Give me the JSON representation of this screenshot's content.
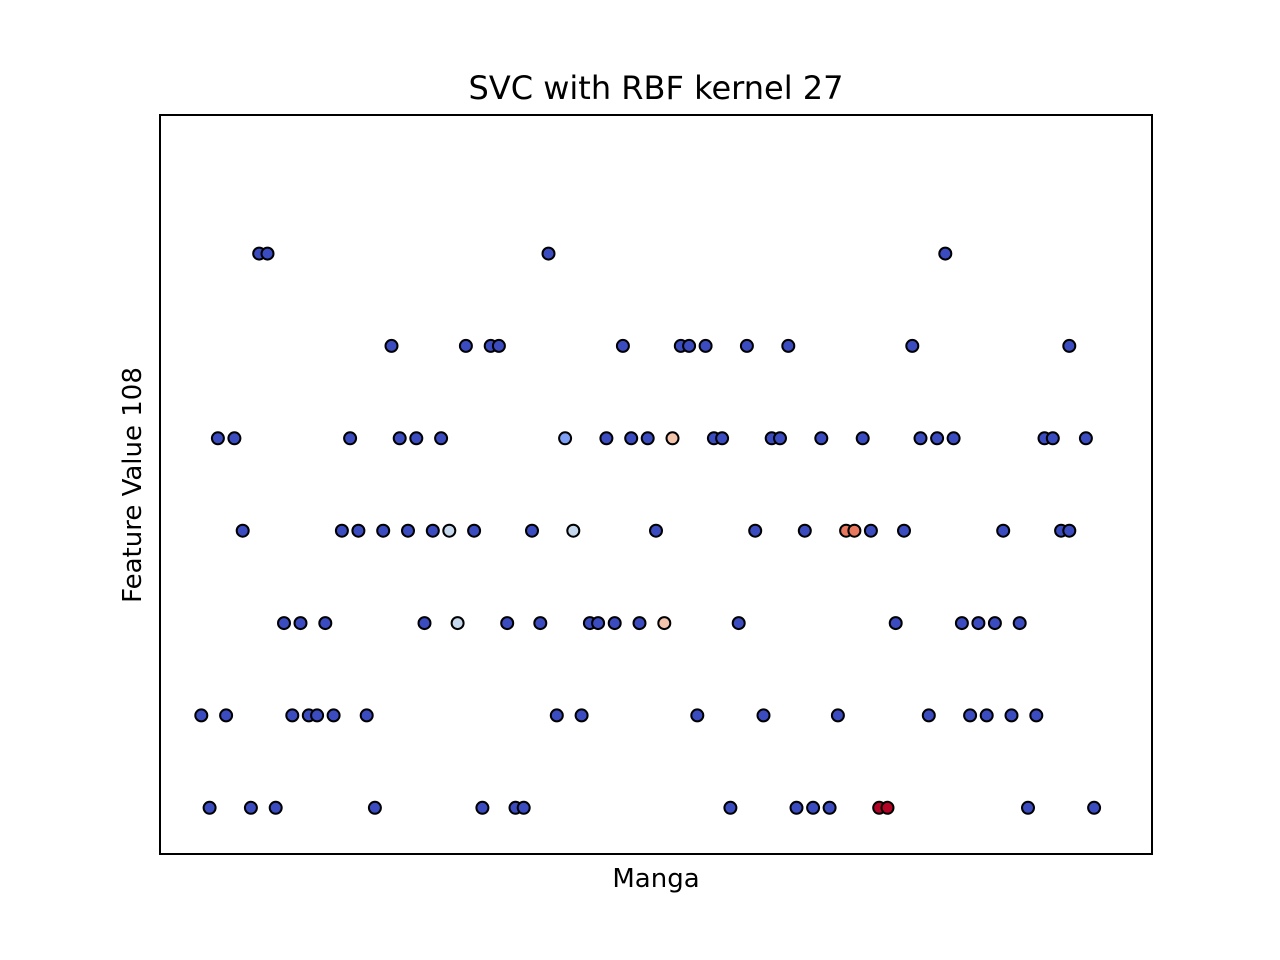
{
  "chart_data": {
    "type": "scatter",
    "title": "SVC with RBF kernel 27",
    "xlabel": "Manga",
    "ylabel": "Feature Value 108",
    "xlim": [
      0,
      120
    ],
    "ylim": [
      -0.5,
      7.5
    ],
    "xticks": [],
    "yticks": [],
    "grid": false,
    "legend": null,
    "marker_edge_color": "#000000",
    "colormap": "coolwarm",
    "colors": {
      "class_low": "#3b4cc0",
      "light_blue": "#7f9ff4",
      "pale_blue": "#c5d8ee",
      "peach": "#f4c5ad",
      "salmon": "#e8795f",
      "deep_red": "#b40426"
    },
    "points": [
      {
        "x": 12,
        "y": 6,
        "c": "class_low"
      },
      {
        "x": 13,
        "y": 6,
        "c": "class_low"
      },
      {
        "x": 47,
        "y": 6,
        "c": "class_low"
      },
      {
        "x": 95,
        "y": 6,
        "c": "class_low"
      },
      {
        "x": 28,
        "y": 5,
        "c": "class_low"
      },
      {
        "x": 37,
        "y": 5,
        "c": "class_low"
      },
      {
        "x": 40,
        "y": 5,
        "c": "class_low"
      },
      {
        "x": 41,
        "y": 5,
        "c": "class_low"
      },
      {
        "x": 56,
        "y": 5,
        "c": "class_low"
      },
      {
        "x": 63,
        "y": 5,
        "c": "class_low"
      },
      {
        "x": 64,
        "y": 5,
        "c": "class_low"
      },
      {
        "x": 66,
        "y": 5,
        "c": "class_low"
      },
      {
        "x": 71,
        "y": 5,
        "c": "class_low"
      },
      {
        "x": 76,
        "y": 5,
        "c": "class_low"
      },
      {
        "x": 91,
        "y": 5,
        "c": "class_low"
      },
      {
        "x": 110,
        "y": 5,
        "c": "class_low"
      },
      {
        "x": 7,
        "y": 4,
        "c": "class_low"
      },
      {
        "x": 9,
        "y": 4,
        "c": "class_low"
      },
      {
        "x": 23,
        "y": 4,
        "c": "class_low"
      },
      {
        "x": 29,
        "y": 4,
        "c": "class_low"
      },
      {
        "x": 31,
        "y": 4,
        "c": "class_low"
      },
      {
        "x": 34,
        "y": 4,
        "c": "class_low"
      },
      {
        "x": 49,
        "y": 4,
        "c": "light_blue"
      },
      {
        "x": 54,
        "y": 4,
        "c": "class_low"
      },
      {
        "x": 57,
        "y": 4,
        "c": "class_low"
      },
      {
        "x": 59,
        "y": 4,
        "c": "class_low"
      },
      {
        "x": 62,
        "y": 4,
        "c": "peach"
      },
      {
        "x": 67,
        "y": 4,
        "c": "class_low"
      },
      {
        "x": 68,
        "y": 4,
        "c": "class_low"
      },
      {
        "x": 74,
        "y": 4,
        "c": "class_low"
      },
      {
        "x": 75,
        "y": 4,
        "c": "class_low"
      },
      {
        "x": 80,
        "y": 4,
        "c": "class_low"
      },
      {
        "x": 85,
        "y": 4,
        "c": "class_low"
      },
      {
        "x": 92,
        "y": 4,
        "c": "class_low"
      },
      {
        "x": 94,
        "y": 4,
        "c": "class_low"
      },
      {
        "x": 96,
        "y": 4,
        "c": "class_low"
      },
      {
        "x": 107,
        "y": 4,
        "c": "class_low"
      },
      {
        "x": 108,
        "y": 4,
        "c": "class_low"
      },
      {
        "x": 112,
        "y": 4,
        "c": "class_low"
      },
      {
        "x": 10,
        "y": 3,
        "c": "class_low"
      },
      {
        "x": 22,
        "y": 3,
        "c": "class_low"
      },
      {
        "x": 24,
        "y": 3,
        "c": "class_low"
      },
      {
        "x": 27,
        "y": 3,
        "c": "class_low"
      },
      {
        "x": 30,
        "y": 3,
        "c": "class_low"
      },
      {
        "x": 33,
        "y": 3,
        "c": "class_low"
      },
      {
        "x": 35,
        "y": 3,
        "c": "pale_blue"
      },
      {
        "x": 38,
        "y": 3,
        "c": "class_low"
      },
      {
        "x": 45,
        "y": 3,
        "c": "class_low"
      },
      {
        "x": 50,
        "y": 3,
        "c": "pale_blue"
      },
      {
        "x": 60,
        "y": 3,
        "c": "class_low"
      },
      {
        "x": 72,
        "y": 3,
        "c": "class_low"
      },
      {
        "x": 78,
        "y": 3,
        "c": "class_low"
      },
      {
        "x": 83,
        "y": 3,
        "c": "salmon"
      },
      {
        "x": 84,
        "y": 3,
        "c": "salmon"
      },
      {
        "x": 86,
        "y": 3,
        "c": "class_low"
      },
      {
        "x": 90,
        "y": 3,
        "c": "class_low"
      },
      {
        "x": 102,
        "y": 3,
        "c": "class_low"
      },
      {
        "x": 109,
        "y": 3,
        "c": "class_low"
      },
      {
        "x": 110,
        "y": 3,
        "c": "class_low"
      },
      {
        "x": 15,
        "y": 2,
        "c": "class_low"
      },
      {
        "x": 17,
        "y": 2,
        "c": "class_low"
      },
      {
        "x": 20,
        "y": 2,
        "c": "class_low"
      },
      {
        "x": 32,
        "y": 2,
        "c": "class_low"
      },
      {
        "x": 36,
        "y": 2,
        "c": "pale_blue"
      },
      {
        "x": 42,
        "y": 2,
        "c": "class_low"
      },
      {
        "x": 46,
        "y": 2,
        "c": "class_low"
      },
      {
        "x": 52,
        "y": 2,
        "c": "class_low"
      },
      {
        "x": 53,
        "y": 2,
        "c": "class_low"
      },
      {
        "x": 55,
        "y": 2,
        "c": "class_low"
      },
      {
        "x": 58,
        "y": 2,
        "c": "class_low"
      },
      {
        "x": 61,
        "y": 2,
        "c": "peach"
      },
      {
        "x": 70,
        "y": 2,
        "c": "class_low"
      },
      {
        "x": 89,
        "y": 2,
        "c": "class_low"
      },
      {
        "x": 97,
        "y": 2,
        "c": "class_low"
      },
      {
        "x": 99,
        "y": 2,
        "c": "class_low"
      },
      {
        "x": 101,
        "y": 2,
        "c": "class_low"
      },
      {
        "x": 104,
        "y": 2,
        "c": "class_low"
      },
      {
        "x": 5,
        "y": 1,
        "c": "class_low"
      },
      {
        "x": 8,
        "y": 1,
        "c": "class_low"
      },
      {
        "x": 16,
        "y": 1,
        "c": "class_low"
      },
      {
        "x": 18,
        "y": 1,
        "c": "class_low"
      },
      {
        "x": 19,
        "y": 1,
        "c": "class_low"
      },
      {
        "x": 21,
        "y": 1,
        "c": "class_low"
      },
      {
        "x": 25,
        "y": 1,
        "c": "class_low"
      },
      {
        "x": 48,
        "y": 1,
        "c": "class_low"
      },
      {
        "x": 51,
        "y": 1,
        "c": "class_low"
      },
      {
        "x": 65,
        "y": 1,
        "c": "class_low"
      },
      {
        "x": 73,
        "y": 1,
        "c": "class_low"
      },
      {
        "x": 82,
        "y": 1,
        "c": "class_low"
      },
      {
        "x": 93,
        "y": 1,
        "c": "class_low"
      },
      {
        "x": 98,
        "y": 1,
        "c": "class_low"
      },
      {
        "x": 100,
        "y": 1,
        "c": "class_low"
      },
      {
        "x": 103,
        "y": 1,
        "c": "class_low"
      },
      {
        "x": 106,
        "y": 1,
        "c": "class_low"
      },
      {
        "x": 6,
        "y": 0,
        "c": "class_low"
      },
      {
        "x": 11,
        "y": 0,
        "c": "class_low"
      },
      {
        "x": 14,
        "y": 0,
        "c": "class_low"
      },
      {
        "x": 26,
        "y": 0,
        "c": "class_low"
      },
      {
        "x": 39,
        "y": 0,
        "c": "class_low"
      },
      {
        "x": 43,
        "y": 0,
        "c": "class_low"
      },
      {
        "x": 44,
        "y": 0,
        "c": "class_low"
      },
      {
        "x": 69,
        "y": 0,
        "c": "class_low"
      },
      {
        "x": 77,
        "y": 0,
        "c": "class_low"
      },
      {
        "x": 79,
        "y": 0,
        "c": "class_low"
      },
      {
        "x": 81,
        "y": 0,
        "c": "class_low"
      },
      {
        "x": 87,
        "y": 0,
        "c": "deep_red"
      },
      {
        "x": 88,
        "y": 0,
        "c": "deep_red"
      },
      {
        "x": 105,
        "y": 0,
        "c": "class_low"
      },
      {
        "x": 113,
        "y": 0,
        "c": "class_low"
      }
    ]
  }
}
